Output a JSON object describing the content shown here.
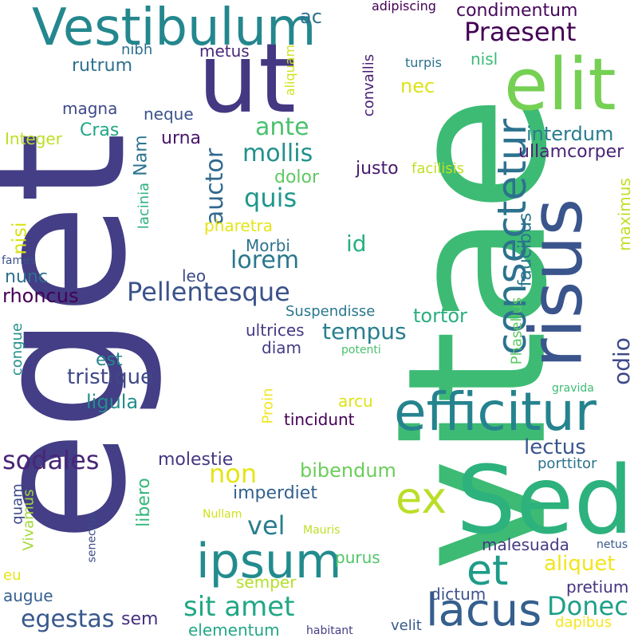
{
  "words": [
    {
      "text": "vitae",
      "color": "#3dbb74"
    },
    {
      "text": "eget",
      "color": "#433e85"
    },
    {
      "text": "risus",
      "color": "#3a548c"
    },
    {
      "text": "Sed",
      "color": "#2db27d"
    },
    {
      "text": "ut",
      "color": "#453882"
    },
    {
      "text": "elit",
      "color": "#75d054"
    },
    {
      "text": "Vestibulum",
      "color": "#24878e"
    },
    {
      "text": "efficitur",
      "color": "#25838e"
    },
    {
      "text": "consectetur",
      "color": "#2c728e"
    },
    {
      "text": "lacus",
      "color": "#355f8d"
    },
    {
      "text": "ipsum",
      "color": "#228c8d"
    },
    {
      "text": "et",
      "color": "#1e9c89"
    },
    {
      "text": "ex",
      "color": "#bade28"
    },
    {
      "text": "Pellentesque",
      "color": "#3b528b"
    },
    {
      "text": "mollis",
      "color": "#21918c"
    },
    {
      "text": "ante",
      "color": "#4ac16d"
    },
    {
      "text": "Praesent",
      "color": "#440154"
    },
    {
      "text": "condimentum",
      "color": "#46085c"
    },
    {
      "text": "auctor",
      "color": "#31688e"
    },
    {
      "text": "quis",
      "color": "#1f988b"
    },
    {
      "text": "lorem",
      "color": "#2a788e"
    },
    {
      "text": "Donec",
      "color": "#1fa088"
    },
    {
      "text": "sodales",
      "color": "#482677"
    },
    {
      "text": "non",
      "color": "#e5e419"
    },
    {
      "text": "sit amet",
      "color": "#22a785"
    },
    {
      "text": "egestas",
      "color": "#38588c"
    },
    {
      "text": "odio",
      "color": "#3e4a89"
    },
    {
      "text": "tempus",
      "color": "#277f8e"
    },
    {
      "text": "tristique",
      "color": "#3f4889"
    },
    {
      "text": "vel",
      "color": "#287d8e"
    },
    {
      "text": "ac",
      "color": "#2c718e"
    },
    {
      "text": "nec",
      "color": "#dde318"
    },
    {
      "text": "interdum",
      "color": "#287c8e"
    },
    {
      "text": "ullamcorper",
      "color": "#482475"
    },
    {
      "text": "dolor",
      "color": "#5ec962"
    },
    {
      "text": "justo",
      "color": "#481a6c"
    },
    {
      "text": "id",
      "color": "#29af7f"
    },
    {
      "text": "faucibus",
      "color": "#2a768e"
    },
    {
      "text": "tortor",
      "color": "#29af7f"
    },
    {
      "text": "bibendum",
      "color": "#6ccd5a"
    },
    {
      "text": "lectus",
      "color": "#39568c"
    },
    {
      "text": "aliquet",
      "color": "#f1e51d"
    },
    {
      "text": "Morbi",
      "color": "#2c718e"
    },
    {
      "text": "nunc",
      "color": "#2d708e"
    },
    {
      "text": "rhoncus",
      "color": "#440154"
    },
    {
      "text": "est",
      "color": "#25858e"
    },
    {
      "text": "ligula",
      "color": "#228d8d"
    },
    {
      "text": "rutrum",
      "color": "#2d718e"
    },
    {
      "text": "Cras",
      "color": "#21a685"
    },
    {
      "text": "urna",
      "color": "#481769"
    },
    {
      "text": "Nam",
      "color": "#2b748e"
    },
    {
      "text": "molestie",
      "color": "#453781"
    },
    {
      "text": "libero",
      "color": "#35b779"
    },
    {
      "text": "imperdiet",
      "color": "#34618d"
    },
    {
      "text": "semper",
      "color": "#b5de2b"
    },
    {
      "text": "purus",
      "color": "#50c46a"
    },
    {
      "text": "tincidunt",
      "color": "#440154"
    },
    {
      "text": "diam",
      "color": "#433d84"
    },
    {
      "text": "ultrices",
      "color": "#443983"
    },
    {
      "text": "Suspendisse",
      "color": "#2a768e"
    },
    {
      "text": "leo",
      "color": "#3e4a89"
    },
    {
      "text": "pretium",
      "color": "#46337f"
    },
    {
      "text": "malesuada",
      "color": "#443a83"
    },
    {
      "text": "dictum",
      "color": "#3b528b"
    },
    {
      "text": "sem",
      "color": "#46307e"
    },
    {
      "text": "elementum",
      "color": "#22a785"
    },
    {
      "text": "velit",
      "color": "#38588c"
    },
    {
      "text": "augue",
      "color": "#355f8d"
    },
    {
      "text": "quam",
      "color": "#3e4989"
    },
    {
      "text": "nisi",
      "color": "#d8e219"
    },
    {
      "text": "congue",
      "color": "#21918c"
    },
    {
      "text": "Integer",
      "color": "#bddf26"
    },
    {
      "text": "magna",
      "color": "#3e4989"
    },
    {
      "text": "neque",
      "color": "#3b528b"
    },
    {
      "text": "nibh",
      "color": "#2d708e"
    },
    {
      "text": "metus",
      "color": "#482878"
    },
    {
      "text": "lacinia",
      "color": "#2db27d"
    },
    {
      "text": "pharetra",
      "color": "#e5e419"
    },
    {
      "text": "facilisis",
      "color": "#c2df23"
    },
    {
      "text": "maximus",
      "color": "#c0df25"
    },
    {
      "text": "Phasellus",
      "color": "#5ec962"
    },
    {
      "text": "convallis",
      "color": "#482173"
    },
    {
      "text": "aliquam",
      "color": "#d2e21b"
    },
    {
      "text": "turpis",
      "color": "#2c718e"
    },
    {
      "text": "nisl",
      "color": "#3aba76"
    },
    {
      "text": "adipiscing",
      "color": "#440154"
    },
    {
      "text": "Proin",
      "color": "#f1e51d"
    },
    {
      "text": "arcu",
      "color": "#dde318"
    },
    {
      "text": "porttitor",
      "color": "#2c728e"
    },
    {
      "text": "gravida",
      "color": "#3dbc74"
    },
    {
      "text": "potenti",
      "color": "#4ac16d"
    },
    {
      "text": "Nullam",
      "color": "#d0e11c"
    },
    {
      "text": "Mauris",
      "color": "#bddf26"
    },
    {
      "text": "netus",
      "color": "#38598c"
    },
    {
      "text": "senectus",
      "color": "#3e4a89"
    },
    {
      "text": "Vivamus",
      "color": "#a2da37"
    },
    {
      "text": "fames",
      "color": "#3b528b"
    },
    {
      "text": "eu",
      "color": "#e7e419"
    },
    {
      "text": "habitant",
      "color": "#433e85"
    },
    {
      "text": "dapibus",
      "color": "#f6e620"
    }
  ]
}
